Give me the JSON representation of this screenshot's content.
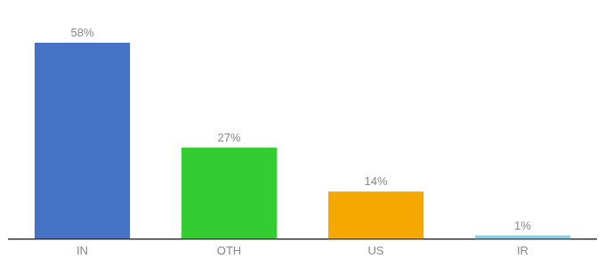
{
  "chart_data": {
    "type": "bar",
    "categories": [
      "IN",
      "OTH",
      "US",
      "IR"
    ],
    "values": [
      58,
      27,
      14,
      1
    ],
    "value_labels": [
      "58%",
      "27%",
      "14%",
      "1%"
    ],
    "colors": [
      "#4472c4",
      "#33cc33",
      "#f5a800",
      "#87ceeb"
    ],
    "ylim": [
      0,
      68
    ],
    "grid": false,
    "data_labels": true,
    "tick_labels": "x"
  }
}
